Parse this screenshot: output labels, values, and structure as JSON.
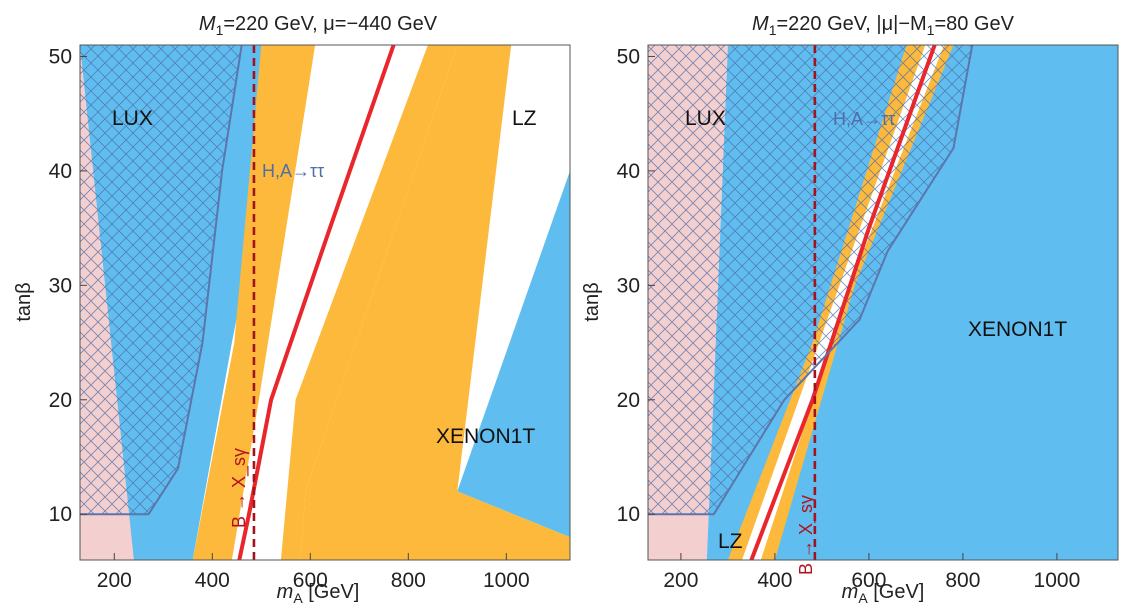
{
  "chart_data": [
    {
      "type": "area",
      "title_main": "M",
      "title_sub": "1",
      "title_rest": "=220 GeV, μ=−440 GeV",
      "xlabel_main": "m",
      "xlabel_sub": "A",
      "xlabel_rest": " [GeV]",
      "ylabel": "tanβ",
      "xlim": [
        130,
        1130
      ],
      "ylim": [
        6,
        51
      ],
      "xticks": [
        200,
        400,
        600,
        800,
        1000
      ],
      "yticks": [
        10,
        20,
        30,
        40,
        50
      ],
      "region_labels": {
        "lux": "LUX",
        "lz": "LZ",
        "xenon": "XENON1T",
        "htautau": "H,A→ττ",
        "bsgamma": "B → X_sγ"
      },
      "bsgamma_bound_mA": 485,
      "colors": {
        "lux": "#f4cfd0",
        "xenon": "#60bdf0",
        "lz": "#fdb93b",
        "allowed": "#ffffff",
        "relic": "#e8262b",
        "htau": "#5a76ad",
        "bsg": "#a3131c"
      },
      "series": [
        {
          "name": "LUX",
          "type": "area",
          "points": [
            [
              130,
              6
            ],
            [
              240,
              6
            ],
            [
              290,
              51
            ],
            [
              130,
              51
            ]
          ]
        },
        {
          "name": "XENON1T",
          "type": "area",
          "points": [
            [
              240,
              6
            ],
            [
              360,
              6
            ],
            [
              440,
              25
            ],
            [
              560,
              51
            ],
            [
              130,
              51
            ]
          ]
        },
        {
          "name": "LZ",
          "type": "area",
          "points": [
            [
              360,
              6
            ],
            [
              440,
              6
            ],
            [
              495,
              20
            ],
            [
              610,
              51
            ],
            [
              500,
              51
            ],
            [
              445,
              25
            ]
          ]
        },
        {
          "name": "",
          "type": "band",
          "points": [
            [
              440,
              6
            ],
            [
              540,
              6
            ],
            [
              570,
              20
            ],
            [
              710,
              51
            ],
            [
              610,
              51
            ],
            [
              500,
              20
            ]
          ]
        },
        {
          "name": "",
          "type": "band",
          "points": [
            [
              540,
              6
            ],
            [
              580,
              6
            ],
            [
              590,
              12
            ],
            [
              900,
              51
            ],
            [
              840,
              51
            ],
            [
              570,
              20
            ]
          ]
        },
        {
          "name": "",
          "type": "area",
          "points": [
            [
              580,
              6
            ],
            [
              1130,
              6
            ],
            [
              1130,
              8
            ],
            [
              900,
              12
            ],
            [
              1010,
              51
            ],
            [
              900,
              51
            ],
            [
              590,
              12
            ]
          ]
        },
        {
          "name": "XENON1T",
          "type": "area",
          "points": [
            [
              1130,
              8
            ],
            [
              900,
              12
            ],
            [
              1130,
              40
            ]
          ]
        },
        {
          "name": "",
          "type": "line",
          "points": [
            [
              455,
              6
            ],
            [
              475,
              10
            ],
            [
              520,
              20
            ],
            [
              640,
              35
            ],
            [
              770,
              51
            ]
          ]
        },
        {
          "name": "H,A→ττ",
          "type": "line",
          "points": [
            [
              130,
              10
            ],
            [
              270,
              10
            ],
            [
              330,
              14
            ],
            [
              380,
              25
            ],
            [
              420,
              40
            ],
            [
              460,
              51
            ]
          ]
        }
      ]
    },
    {
      "type": "area",
      "title_main": "M",
      "title_sub": "1",
      "title_rest": "=220 GeV, |μ|−M",
      "title_sub2": "1",
      "title_rest2": "=80 GeV",
      "xlabel_main": "m",
      "xlabel_sub": "A",
      "xlabel_rest": " [GeV]",
      "ylabel": "tanβ",
      "xlim": [
        130,
        1130
      ],
      "ylim": [
        6,
        51
      ],
      "xticks": [
        200,
        400,
        600,
        800,
        1000
      ],
      "yticks": [
        10,
        20,
        30,
        40,
        50
      ],
      "region_labels": {
        "lux": "LUX",
        "lz": "LZ",
        "xenon": "XENON1T",
        "htautau": "H,A→ττ",
        "bsgamma": "B → X_sγ"
      },
      "bsgamma_bound_mA": 485,
      "colors": {
        "lux": "#f4cfd0",
        "xenon": "#60bdf0",
        "lz": "#fdb93b",
        "allowed": "#ffffff",
        "relic": "#e8262b",
        "htau": "#5a76ad",
        "bsg": "#a3131c"
      },
      "series": [
        {
          "name": "LUX",
          "type": "area",
          "points": [
            [
              130,
              6
            ],
            [
              255,
              6
            ],
            [
              300,
              51
            ],
            [
              130,
              51
            ]
          ]
        },
        {
          "name": "XENON1T",
          "type": "area",
          "points": [
            [
              255,
              6
            ],
            [
              1130,
              6
            ],
            [
              1130,
              51
            ],
            [
              300,
              51
            ]
          ]
        },
        {
          "name": "LZ",
          "type": "area",
          "points": [
            [
              300,
              6
            ],
            [
              400,
              6
            ],
            [
              570,
              30
            ],
            [
              780,
              51
            ],
            [
              680,
              51
            ],
            [
              480,
              25
            ]
          ]
        },
        {
          "name": "",
          "type": "band",
          "points": [
            [
              330,
              6
            ],
            [
              370,
              6
            ],
            [
              560,
              30
            ],
            [
              760,
              51
            ],
            [
              720,
              51
            ],
            [
              520,
              28
            ]
          ]
        },
        {
          "name": "",
          "type": "line",
          "points": [
            [
              350,
              6
            ],
            [
              480,
              20
            ],
            [
              600,
              35
            ],
            [
              740,
              51
            ]
          ]
        },
        {
          "name": "H,A→ττ",
          "type": "line",
          "points": [
            [
              130,
              10
            ],
            [
              270,
              10
            ],
            [
              330,
              14
            ],
            [
              420,
              20
            ],
            [
              580,
              27
            ],
            [
              640,
              33
            ],
            [
              780,
              42
            ],
            [
              820,
              51
            ]
          ]
        }
      ]
    }
  ]
}
